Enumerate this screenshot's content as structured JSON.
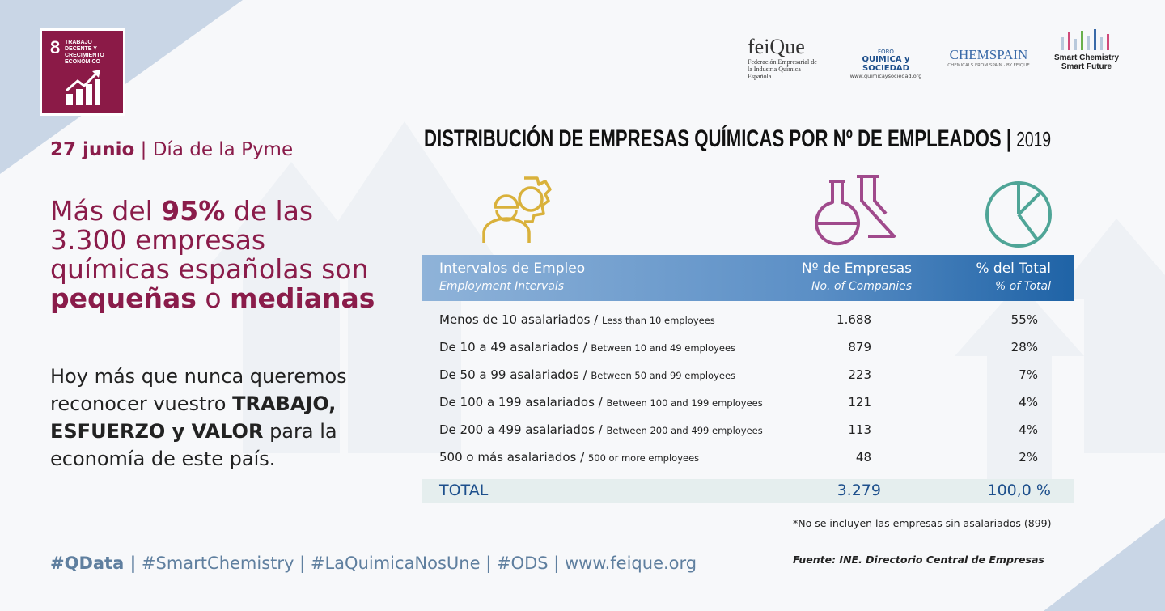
{
  "sdg": {
    "number": "8",
    "title": "TRABAJO DECENTE Y CRECIMIENTO ECONÓMICO"
  },
  "logos": {
    "feique": {
      "name": "feiQue",
      "caption": "Federación Empresarial de la Industria Química Española"
    },
    "foro": {
      "top": "FORO",
      "name": "QUIMICA y SOCIEDAD",
      "url": "www.quimicaysociedad.org"
    },
    "chemspain": {
      "name": "CHEMSPAIN",
      "caption": "CHEMICALS FROM SPAIN · BY FEIQUE"
    },
    "smart": {
      "name": "Smart Chemistry Smart Future"
    }
  },
  "date": {
    "day": "27 junio",
    "separator": "|",
    "event": "Día de la Pyme"
  },
  "headline": [
    {
      "text": "Más del ",
      "bold": false
    },
    {
      "text": "95%",
      "bold": true
    },
    {
      "text": " de las 3.300 empresas químicas españolas son ",
      "bold": false
    },
    {
      "text": "pequeñas",
      "bold": true
    },
    {
      "text": " o ",
      "bold": false
    },
    {
      "text": "medianas",
      "bold": true
    }
  ],
  "body": [
    {
      "text": "Hoy más que nunca queremos reconocer vuestro ",
      "bold": false
    },
    {
      "text": "TRABAJO, ESFUERZO y VALOR",
      "bold": true
    },
    {
      "text": " para la economía de este país.",
      "bold": false
    }
  ],
  "hashtags": [
    {
      "text": "#QData |",
      "bold": true
    },
    {
      "text": " #SmartChemistry | #LaQuimicaNosUne | #ODS | www.feique.org",
      "bold": false
    }
  ],
  "table": {
    "title": "DISTRIBUCIÓN DE EMPRESAS QUÍMICAS POR Nº DE EMPLEADOS",
    "separator": "|",
    "year": "2019",
    "headers": [
      {
        "es": "Intervalos de Empleo",
        "en": "Employment Intervals"
      },
      {
        "es": "Nº de Empresas",
        "en": "No. of Companies"
      },
      {
        "es": "% del Total",
        "en": "% of Total"
      }
    ],
    "rows": [
      [
        "Menos de 10 asalariados /",
        "Less than 10 employees",
        "1.688",
        "55%"
      ],
      [
        "De 10 a 49 asalariados /",
        "Between 10 and 49 employees",
        "879",
        "28%"
      ],
      [
        "De 50 a 99 asalariados /",
        "Between 50 and 99 employees",
        "223",
        "7%"
      ],
      [
        "De 100 a 199 asalariados /",
        "Between 100 and 199 employees",
        "121",
        "4%"
      ],
      [
        "De 200 a 499 asalariados /",
        "Between 200 and 499 employees",
        "113",
        "4%"
      ],
      [
        "500 o más asalariados /",
        "500 or more employees",
        "48",
        "2%"
      ]
    ],
    "total": [
      "TOTAL",
      "3.279",
      "100,0 %"
    ],
    "note": "*No se incluyen las empresas sin asalariados (899)",
    "source": "Fuente: INE. Directorio Central de Empresas"
  }
}
